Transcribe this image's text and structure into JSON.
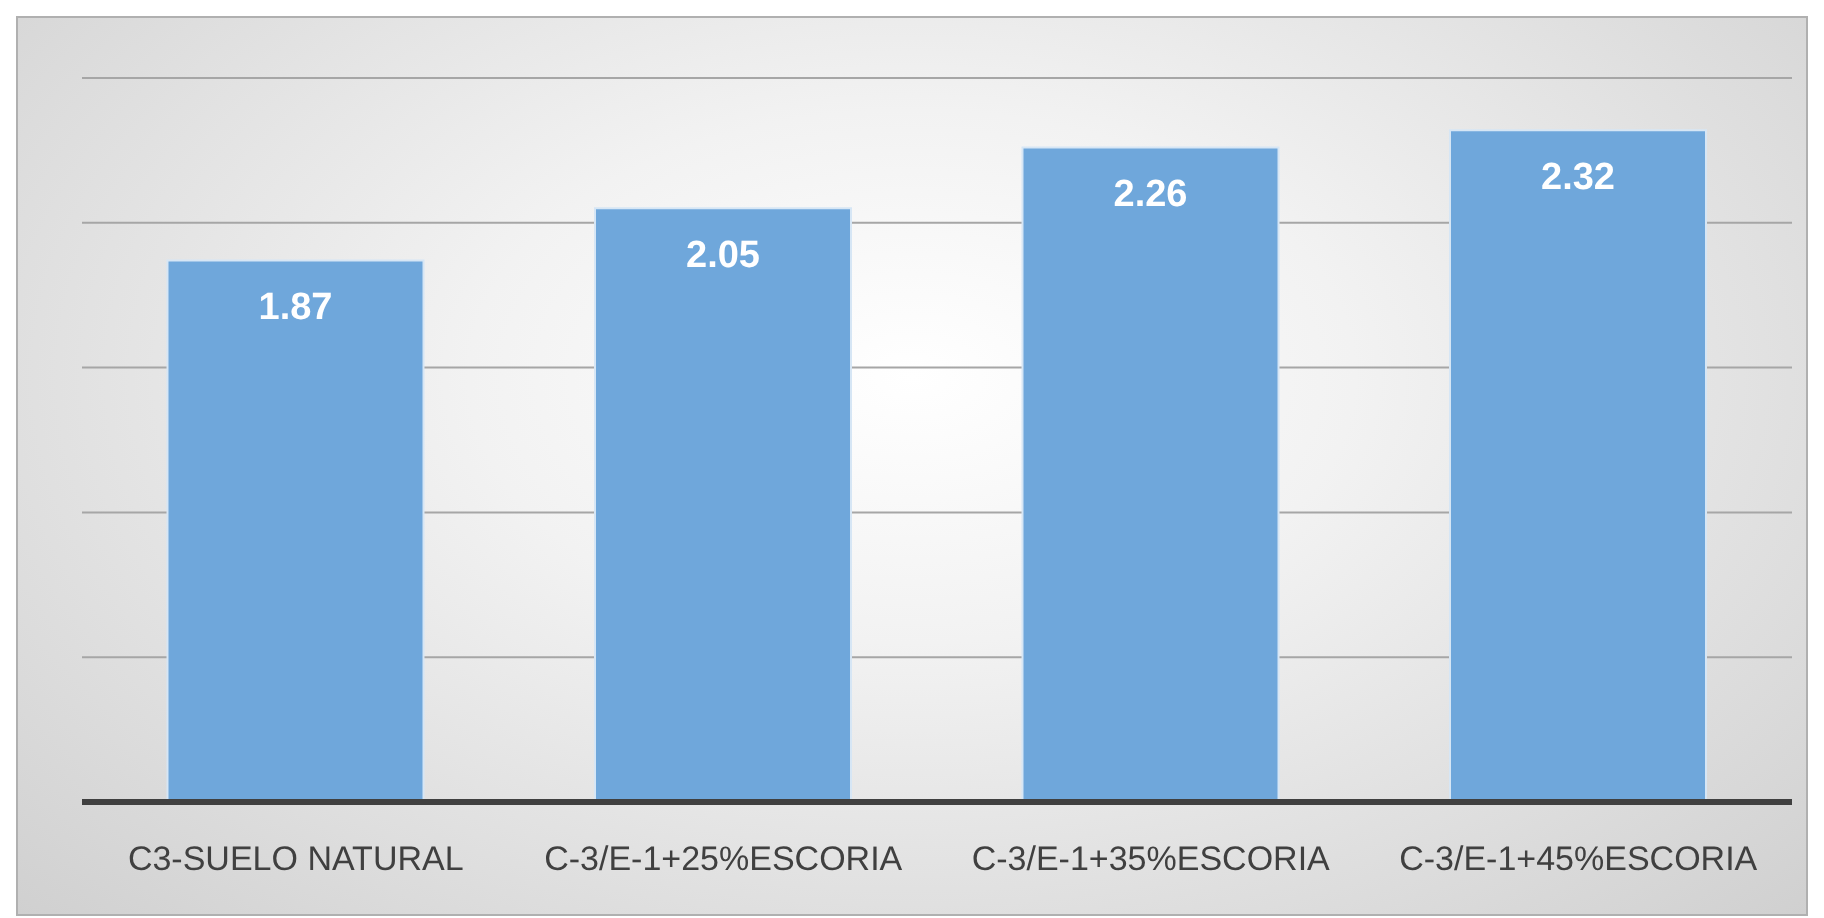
{
  "chart_data": {
    "type": "bar",
    "categories": [
      "C3-SUELO NATURAL",
      "C-3/E-1+25%ESCORIA",
      "C-3/E-1+35%ESCORIA",
      "C-3/E-1+45%ESCORIA"
    ],
    "values": [
      1.87,
      2.05,
      2.26,
      2.32
    ],
    "color": "#6fa7db",
    "ylim": [
      0,
      2.5
    ],
    "yticks": [
      {
        "value": 0,
        "label": null
      },
      {
        "value": 0.5,
        "label": null
      },
      {
        "value": 1,
        "label": null
      },
      {
        "value": 1.5,
        "label": null
      },
      {
        "value": 2,
        "label": null
      },
      {
        "value": 2.5,
        "label": null
      }
    ],
    "tick_labels": "x",
    "grid": "y",
    "data_labels": true
  }
}
